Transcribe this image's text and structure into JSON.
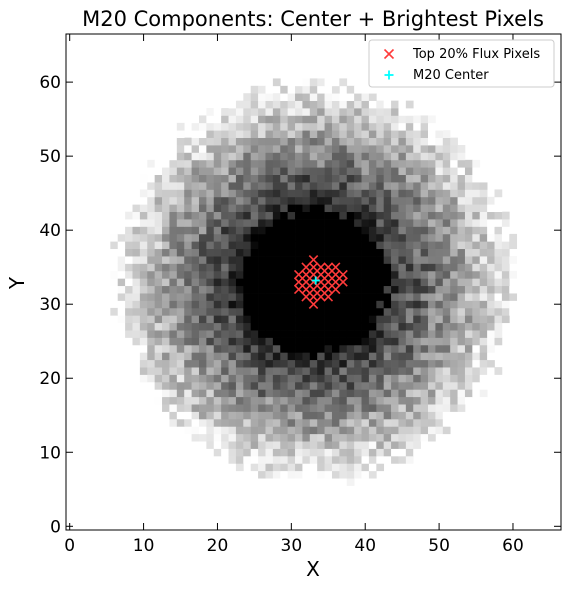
{
  "chart_data": {
    "type": "heatmap",
    "title": "M20 Components: Center + Brightest Pixels",
    "xlabel": "X",
    "ylabel": "Y",
    "xlim": [
      -0.5,
      66.5
    ],
    "ylim": [
      -0.5,
      66.5
    ],
    "xticks": [
      0,
      10,
      20,
      30,
      40,
      50,
      60
    ],
    "yticks": [
      0,
      10,
      20,
      30,
      40,
      50,
      60
    ],
    "grid": false,
    "colormap": "gray_r",
    "image": {
      "description_center": [
        33,
        33
      ],
      "disk_radius_pixels": 27,
      "saturated_core_radius_pixels": 10
    },
    "series": [
      {
        "name": "Top 20% Flux Pixels",
        "marker": "x",
        "color": "#ff3b3b",
        "points": [
          [
            33,
            36
          ],
          [
            32,
            35
          ],
          [
            33,
            35
          ],
          [
            34,
            35
          ],
          [
            35,
            35
          ],
          [
            36,
            35
          ],
          [
            31,
            34
          ],
          [
            32,
            34
          ],
          [
            33,
            34
          ],
          [
            34,
            34
          ],
          [
            35,
            34
          ],
          [
            36,
            34
          ],
          [
            37,
            34
          ],
          [
            31,
            33
          ],
          [
            32,
            33
          ],
          [
            33,
            33
          ],
          [
            34,
            33
          ],
          [
            35,
            33
          ],
          [
            36,
            33
          ],
          [
            37,
            33
          ],
          [
            31,
            32
          ],
          [
            32,
            32
          ],
          [
            33,
            32
          ],
          [
            34,
            32
          ],
          [
            35,
            32
          ],
          [
            36,
            32
          ],
          [
            32,
            31
          ],
          [
            33,
            31
          ],
          [
            34,
            31
          ],
          [
            35,
            31
          ],
          [
            33,
            30
          ]
        ]
      },
      {
        "name": "M20 Center",
        "marker": "+",
        "color": "#00ffff",
        "points": [
          [
            33.3,
            33.2
          ]
        ]
      }
    ],
    "legend": {
      "placement": "top-right"
    }
  }
}
